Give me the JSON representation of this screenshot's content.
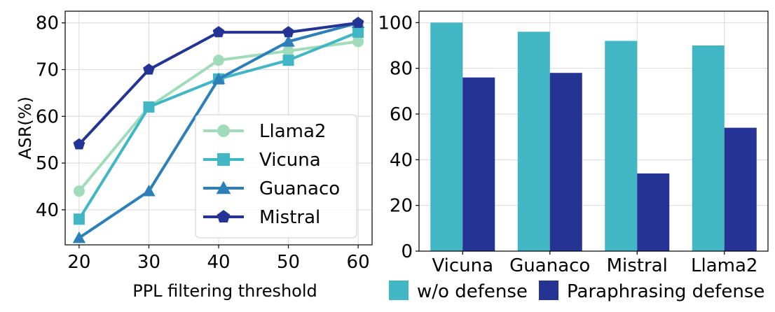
{
  "chart_data": [
    {
      "type": "line",
      "xlabel": "PPL filtering threshold",
      "ylabel": "ASR(%)",
      "xlim": [
        18,
        62
      ],
      "ylim": [
        32.5,
        82.5
      ],
      "xticks": [
        "20",
        "30",
        "40",
        "50",
        "60"
      ],
      "yticks": [
        "40",
        "50",
        "60",
        "70",
        "80"
      ],
      "grid": true,
      "legend_position": "center-right",
      "x": [
        20,
        30,
        40,
        50,
        60
      ],
      "series": [
        {
          "name": "Llama2",
          "color": "#a0dcbb",
          "marker": "circle",
          "values": [
            44,
            62,
            72,
            74,
            76
          ]
        },
        {
          "name": "Vicuna",
          "color": "#41b6c4",
          "marker": "square",
          "values": [
            38,
            62,
            68,
            72,
            78
          ]
        },
        {
          "name": "Guanaco",
          "color": "#2c7fb8",
          "marker": "triangle",
          "values": [
            34,
            44,
            68,
            76,
            80
          ]
        },
        {
          "name": "Mistral",
          "color": "#253494",
          "marker": "pentagon",
          "values": [
            54,
            70,
            78,
            78,
            80
          ]
        }
      ]
    },
    {
      "type": "bar",
      "categories": [
        "Vicuna",
        "Guanaco",
        "Mistral",
        "Llama2"
      ],
      "ylim": [
        0,
        105
      ],
      "yticks": [
        "0",
        "20",
        "40",
        "60",
        "80",
        "100"
      ],
      "grid": true,
      "legend_position": "bottom",
      "series": [
        {
          "name": "w/o defense",
          "color": "#41b6c4",
          "values": [
            100,
            96,
            92,
            90
          ]
        },
        {
          "name": "Paraphrasing defense",
          "color": "#253494",
          "values": [
            76,
            78,
            34,
            54
          ]
        }
      ]
    }
  ]
}
